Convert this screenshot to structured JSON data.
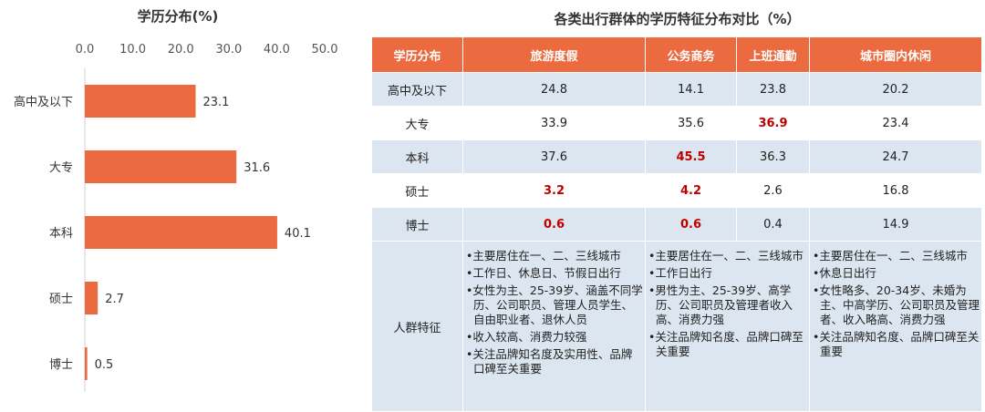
{
  "chart_data": [
    {
      "type": "bar",
      "orientation": "horizontal",
      "title": "学历分布(%)",
      "categories": [
        "高中及以下",
        "大专",
        "本科",
        "硕士",
        "博士"
      ],
      "values": [
        23.1,
        31.6,
        40.1,
        2.7,
        0.5
      ],
      "value_labels": [
        "23.1",
        "31.6",
        "40.1",
        "2.7",
        "0.5"
      ],
      "xlim": [
        0,
        50
      ],
      "xticks": [
        "0.0",
        "10.0",
        "20.0",
        "30.0",
        "40.0",
        "50.0"
      ],
      "axis_position": "top",
      "bar_color": "#ec6a3f",
      "grid": false
    },
    {
      "type": "table",
      "title": "各类出行群体的学历特征分布对比（%）",
      "header_color": "#ec6a3f",
      "row_color": "#dce6f0",
      "highlight_color": "#c00000",
      "columns": [
        "学历分布",
        "旅游度假",
        "公务商务",
        "上班通勤",
        "城市圈内休闲"
      ],
      "rows": [
        {
          "label": "高中及以下",
          "cells": [
            {
              "v": "24.8",
              "hl": false
            },
            {
              "v": "14.1",
              "hl": false
            },
            {
              "v": "23.8",
              "hl": false
            },
            {
              "v": "20.2",
              "hl": false
            }
          ]
        },
        {
          "label": "大专",
          "cells": [
            {
              "v": "33.9",
              "hl": false
            },
            {
              "v": "35.6",
              "hl": false
            },
            {
              "v": "36.9",
              "hl": true
            },
            {
              "v": "23.4",
              "hl": false
            }
          ]
        },
        {
          "label": "本科",
          "cells": [
            {
              "v": "37.6",
              "hl": false
            },
            {
              "v": "45.5",
              "hl": true
            },
            {
              "v": "36.3",
              "hl": false
            },
            {
              "v": "24.7",
              "hl": false
            }
          ]
        },
        {
          "label": "硕士",
          "cells": [
            {
              "v": "3.2",
              "hl": true
            },
            {
              "v": "4.2",
              "hl": true
            },
            {
              "v": "2.6",
              "hl": false
            },
            {
              "v": "16.8",
              "hl": false
            }
          ]
        },
        {
          "label": "博士",
          "cells": [
            {
              "v": "0.6",
              "hl": true
            },
            {
              "v": "0.6",
              "hl": true
            },
            {
              "v": "0.4",
              "hl": false
            },
            {
              "v": "14.9",
              "hl": false
            }
          ]
        }
      ],
      "traits_label": "人群特征",
      "traits": {
        "leisure_travel": [
          "•主要居住在一、二、三线城市",
          "•工作日、休息日、节假日出行",
          "•女性为主、25-39岁、涵盖不同学历、公司职员、管理人员学生、自由职业者、退休人员",
          "•收入较高、消费力较强",
          "•关注品牌知名度及实用性、品牌口碑至关重要"
        ],
        "business_commute": [
          "•主要居住在一、二、三线城市",
          "•工作日出行",
          "•男性为主、25-39岁、高学历、公司职员及管理者收入高、消费力强",
          "•关注品牌知名度、品牌口碑至关重要"
        ],
        "city_leisure": [
          "•主要居住在一、二、三线城市",
          "•休息日出行",
          "•女性略多、20-34岁、未婚为主、中高学历、公司职员及管理者、收入略高、消费力强",
          "•关注品牌知名度、品牌口碑至关重要"
        ]
      }
    }
  ]
}
